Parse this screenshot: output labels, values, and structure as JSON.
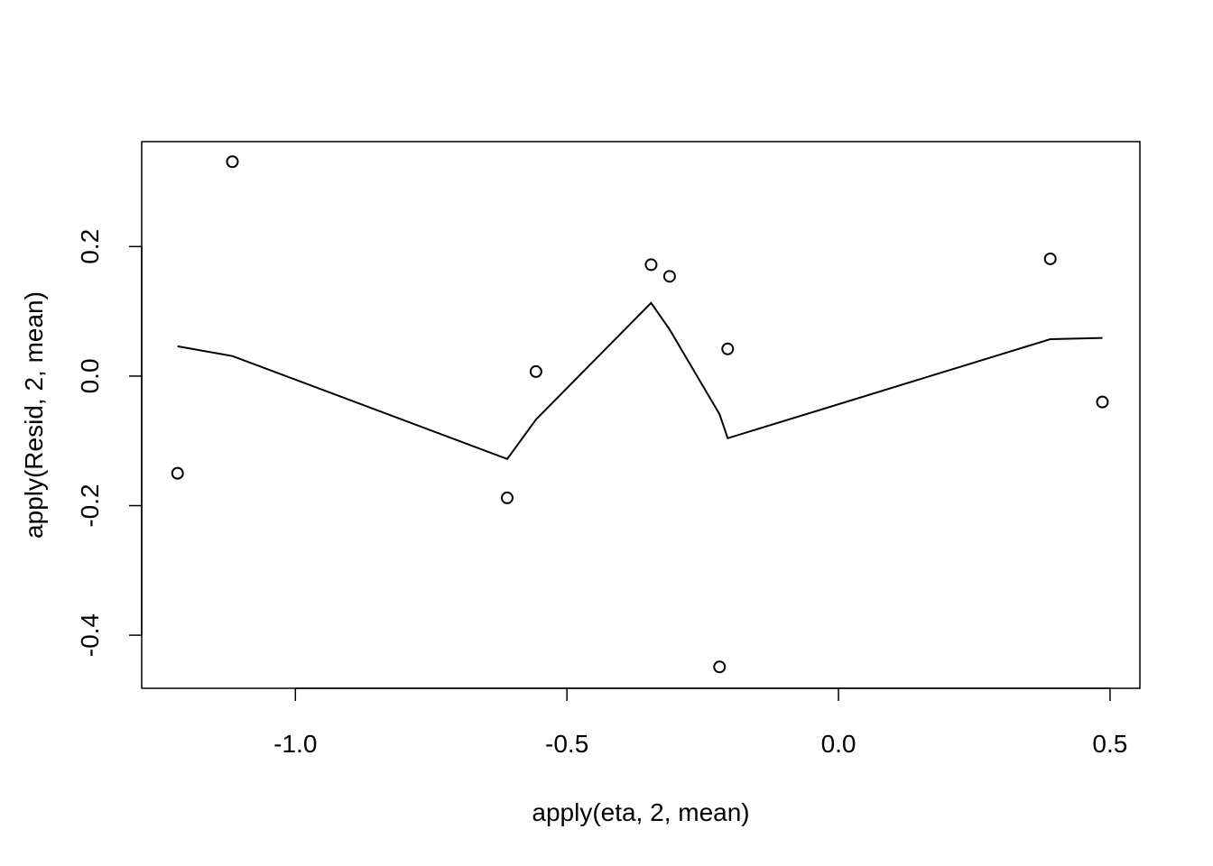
{
  "chart_data": {
    "type": "scatter",
    "title": "",
    "xlabel": "apply(eta, 2, mean)",
    "ylabel": "apply(Resid, 2, mean)",
    "xlim": [
      -1.283,
      0.555
    ],
    "ylim": [
      -0.482,
      0.362
    ],
    "x_ticks": [
      -1.0,
      -0.5,
      0.0,
      0.5
    ],
    "x_tick_labels": [
      "-1.0",
      "-0.5",
      "0.0",
      "0.5"
    ],
    "y_ticks": [
      -0.4,
      -0.2,
      0.0,
      0.2
    ],
    "y_tick_labels": [
      "-0.4",
      "-0.2",
      "0.0",
      "0.2"
    ],
    "grid": false,
    "series": [
      {
        "name": "points",
        "kind": "points",
        "marker": "open-circle",
        "x": [
          -1.217,
          -1.116,
          -0.61,
          -0.557,
          -0.345,
          -0.311,
          -0.219,
          -0.204,
          0.39,
          0.486
        ],
        "y": [
          -0.15,
          0.331,
          -0.188,
          0.007,
          0.172,
          0.154,
          -0.449,
          0.042,
          0.181,
          -0.04
        ]
      },
      {
        "name": "smoother",
        "kind": "line",
        "x": [
          -1.217,
          -1.116,
          -0.61,
          -0.557,
          -0.345,
          -0.311,
          -0.219,
          -0.204,
          0.39,
          0.486
        ],
        "y": [
          0.046,
          0.031,
          -0.128,
          -0.067,
          0.113,
          0.072,
          -0.059,
          -0.096,
          0.057,
          0.059
        ]
      }
    ],
    "colors": {
      "foreground": "#000000",
      "background": "#ffffff"
    }
  }
}
